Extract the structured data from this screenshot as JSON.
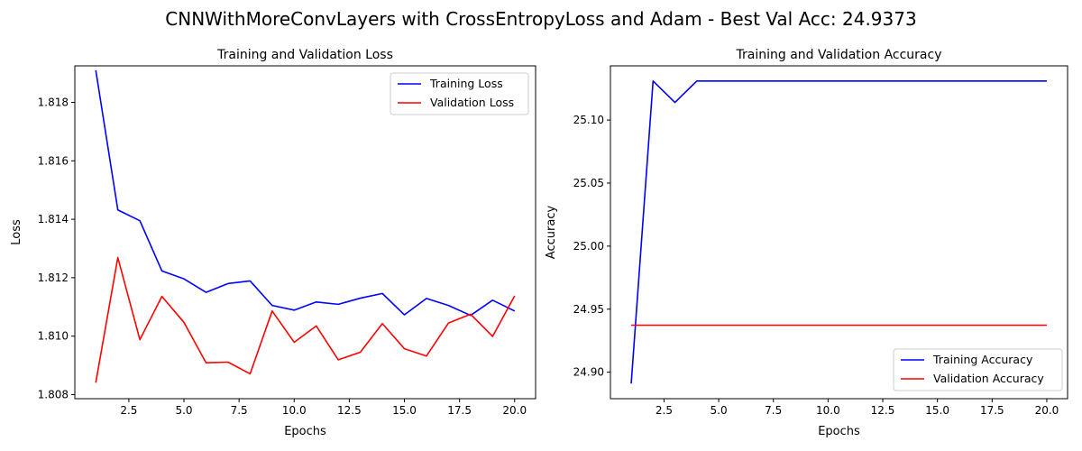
{
  "figure": {
    "suptitle": "CNNWithMoreConvLayers with CrossEntropyLoss and Adam - Best Val Acc: 24.9373"
  },
  "chart_data": [
    {
      "type": "line",
      "title": "Training and Validation Loss",
      "xlabel": "Epochs",
      "ylabel": "Loss",
      "x": [
        1,
        2,
        3,
        4,
        5,
        6,
        7,
        8,
        9,
        10,
        11,
        12,
        13,
        14,
        15,
        16,
        17,
        18,
        19,
        20
      ],
      "xlim": [
        0.05,
        20.95
      ],
      "ylim": [
        1.80786,
        1.81925
      ],
      "xticks": [
        2.5,
        5.0,
        7.5,
        10.0,
        12.5,
        15.0,
        17.5,
        20.0
      ],
      "xtick_labels": [
        "2.5",
        "5.0",
        "7.5",
        "10.0",
        "12.5",
        "15.0",
        "17.5",
        "20.0"
      ],
      "yticks": [
        1.808,
        1.81,
        1.812,
        1.814,
        1.816,
        1.818
      ],
      "ytick_labels": [
        "1.808",
        "1.810",
        "1.812",
        "1.814",
        "1.816",
        "1.818"
      ],
      "legend_position": "upper right",
      "grid": false,
      "series": [
        {
          "name": "Training Loss",
          "color": "#0000ff",
          "values": [
            1.8191,
            1.81432,
            1.81395,
            1.81223,
            1.81196,
            1.8115,
            1.8118,
            1.81189,
            1.81105,
            1.81089,
            1.81117,
            1.81109,
            1.8113,
            1.81146,
            1.81073,
            1.81129,
            1.81105,
            1.81071,
            1.81123,
            1.81086
          ]
        },
        {
          "name": "Validation Loss",
          "color": "#ff0000",
          "values": [
            1.80841,
            1.81269,
            1.80988,
            1.81136,
            1.81047,
            1.80909,
            1.80911,
            1.80871,
            1.81086,
            1.80979,
            1.81035,
            1.80919,
            1.80945,
            1.81043,
            1.80957,
            1.80932,
            1.81045,
            1.81075,
            1.80999,
            1.81138
          ]
        }
      ]
    },
    {
      "type": "line",
      "title": "Training and Validation Accuracy",
      "xlabel": "Epochs",
      "ylabel": "Accuracy",
      "x": [
        1,
        2,
        3,
        4,
        5,
        6,
        7,
        8,
        9,
        10,
        11,
        12,
        13,
        14,
        15,
        16,
        17,
        18,
        19,
        20
      ],
      "xlim": [
        0.05,
        20.95
      ],
      "ylim": [
        24.879,
        25.143
      ],
      "xticks": [
        2.5,
        5.0,
        7.5,
        10.0,
        12.5,
        15.0,
        17.5,
        20.0
      ],
      "xtick_labels": [
        "2.5",
        "5.0",
        "7.5",
        "10.0",
        "12.5",
        "15.0",
        "17.5",
        "20.0"
      ],
      "yticks": [
        24.9,
        24.95,
        25.0,
        25.05,
        25.1
      ],
      "ytick_labels": [
        "24.90",
        "24.95",
        "25.00",
        "25.05",
        "25.10"
      ],
      "legend_position": "lower right",
      "grid": false,
      "series": [
        {
          "name": "Training Accuracy",
          "color": "#0000ff",
          "values": [
            24.891,
            25.131,
            25.114,
            25.131,
            25.131,
            25.131,
            25.131,
            25.131,
            25.131,
            25.131,
            25.131,
            25.131,
            25.131,
            25.131,
            25.131,
            25.131,
            25.131,
            25.131,
            25.131,
            25.131
          ]
        },
        {
          "name": "Validation Accuracy",
          "color": "#ff0000",
          "values": [
            24.9373,
            24.9373,
            24.9373,
            24.9373,
            24.9373,
            24.9373,
            24.9373,
            24.9373,
            24.9373,
            24.9373,
            24.9373,
            24.9373,
            24.9373,
            24.9373,
            24.9373,
            24.9373,
            24.9373,
            24.9373,
            24.9373,
            24.9373
          ]
        }
      ]
    }
  ]
}
